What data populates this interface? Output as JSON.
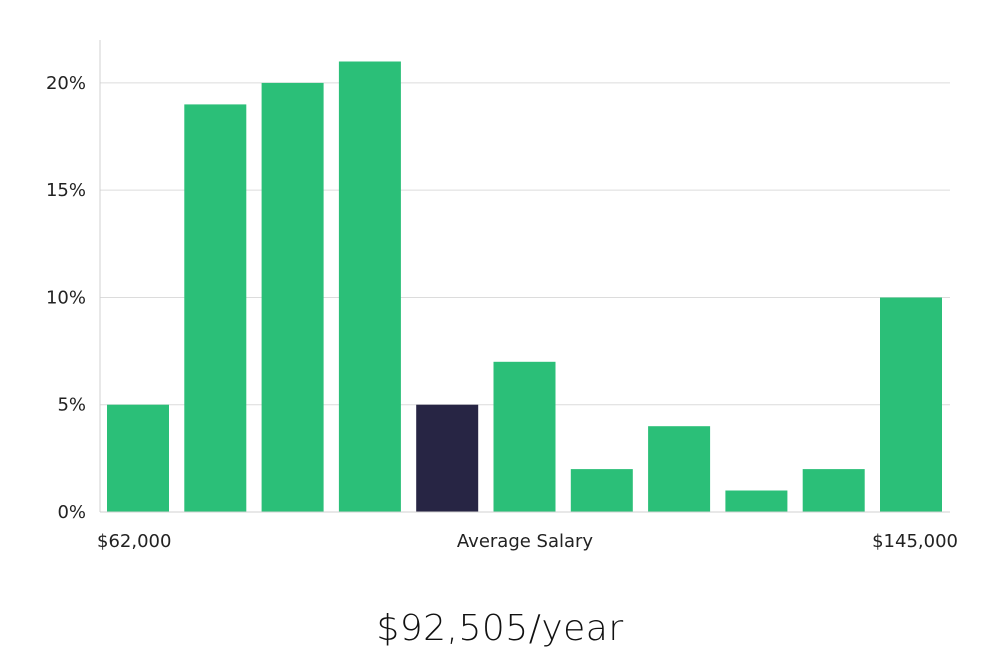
{
  "chart_data": {
    "type": "bar",
    "values": [
      5,
      19,
      20,
      21,
      5,
      7,
      2,
      4,
      1,
      2,
      10
    ],
    "highlight_index": 4,
    "ylim": [
      0,
      22
    ],
    "yticks": [
      0,
      5,
      10,
      15,
      20
    ],
    "ytick_format": "%",
    "grid": true,
    "x_labels": {
      "left": "$62,000",
      "center": "Average Salary",
      "right": "$145,000"
    },
    "colors": {
      "bar": "#2bbf78",
      "highlight": "#272544",
      "grid": "#dcdcdc",
      "axis": "#d0d0d0"
    }
  },
  "salary_text": "$92,505/year"
}
